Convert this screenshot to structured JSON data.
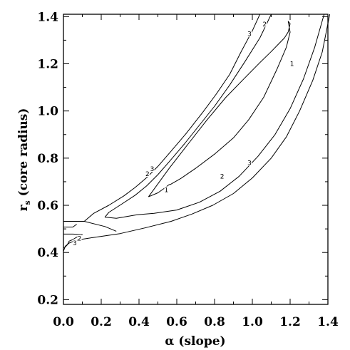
{
  "chart_data": {
    "type": "contour",
    "xlabel": "α (slope)",
    "ylabel": "r",
    "ylabel_subscript": "s",
    "ylabel_suffix": " (core radius)",
    "xlim": [
      0.0,
      1.4
    ],
    "ylim": [
      0.18,
      1.41
    ],
    "x_ticks": [
      0.0,
      0.2,
      0.4,
      0.6,
      0.8,
      1.0,
      1.2,
      1.4
    ],
    "x_tick_labels": [
      "0.0",
      "0.2",
      "0.4",
      "0.6",
      "0.8",
      "1.0",
      "1.2",
      "1.4"
    ],
    "y_ticks": [
      0.2,
      0.4,
      0.6,
      0.8,
      1.0,
      1.2,
      1.4
    ],
    "y_tick_labels": [
      "0.2",
      "0.4",
      "0.6",
      "0.8",
      "1.0",
      "1.2",
      "1.4"
    ],
    "grid": false,
    "contours": [
      {
        "level": "1",
        "points": [
          [
            0.45,
            0.636
          ],
          [
            0.56,
            0.757
          ],
          [
            0.66,
            0.86
          ],
          [
            0.76,
            0.962
          ],
          [
            0.86,
            1.058
          ],
          [
            0.96,
            1.14
          ],
          [
            1.04,
            1.205
          ],
          [
            1.1,
            1.252
          ],
          [
            1.14,
            1.285
          ],
          [
            1.17,
            1.31
          ],
          [
            1.19,
            1.335
          ],
          [
            1.2,
            1.37
          ],
          [
            1.19,
            1.38
          ],
          [
            1.2,
            1.334
          ],
          [
            1.18,
            1.27
          ],
          [
            1.13,
            1.176
          ],
          [
            1.06,
            1.058
          ],
          [
            0.98,
            0.962
          ],
          [
            0.9,
            0.886
          ],
          [
            0.8,
            0.817
          ],
          [
            0.7,
            0.757
          ],
          [
            0.62,
            0.713
          ],
          [
            0.565,
            0.688
          ],
          [
            0.56,
            0.688
          ],
          [
            0.53,
            0.67
          ],
          [
            0.5,
            0.653
          ],
          [
            0.45,
            0.636
          ]
        ]
      },
      {
        "level": "2",
        "points": [
          [
            1.38,
            1.41
          ],
          [
            1.33,
            1.27
          ],
          [
            1.27,
            1.135
          ],
          [
            1.2,
            1.01
          ],
          [
            1.12,
            0.9
          ],
          [
            1.03,
            0.808
          ],
          [
            0.93,
            0.723
          ],
          [
            0.83,
            0.66
          ],
          [
            0.72,
            0.613
          ],
          [
            0.6,
            0.58
          ],
          [
            0.48,
            0.566
          ],
          [
            0.39,
            0.56
          ],
          [
            0.28,
            0.545
          ],
          [
            0.22,
            0.55
          ],
          [
            0.24,
            0.57
          ],
          [
            0.31,
            0.606
          ],
          [
            0.38,
            0.643
          ],
          [
            0.44,
            0.682
          ],
          [
            0.5,
            0.73
          ],
          [
            0.56,
            0.785
          ],
          [
            0.64,
            0.86
          ],
          [
            0.72,
            0.94
          ],
          [
            0.8,
            1.02
          ],
          [
            0.88,
            1.11
          ],
          [
            0.96,
            1.208
          ],
          [
            1.04,
            1.31
          ],
          [
            1.1,
            1.41
          ]
        ]
      },
      {
        "level": "2",
        "points": [
          [
            0.0,
            0.478
          ],
          [
            0.05,
            0.478
          ],
          [
            0.1,
            0.476
          ],
          [
            0.07,
            0.465
          ],
          [
            0.05,
            0.455
          ],
          [
            0.03,
            0.448
          ],
          [
            0.02,
            0.432
          ],
          [
            0.01,
            0.424
          ],
          [
            0.0,
            0.42
          ]
        ]
      },
      {
        "level": "3",
        "points": [
          [
            1.41,
            1.41
          ],
          [
            1.37,
            1.25
          ],
          [
            1.32,
            1.13
          ],
          [
            1.25,
            1.0
          ],
          [
            1.18,
            0.89
          ],
          [
            1.1,
            0.8
          ],
          [
            1.0,
            0.716
          ],
          [
            0.9,
            0.65
          ],
          [
            0.79,
            0.6
          ],
          [
            0.68,
            0.563
          ],
          [
            0.57,
            0.532
          ],
          [
            0.43,
            0.504
          ],
          [
            0.3,
            0.48
          ],
          [
            0.17,
            0.465
          ],
          [
            0.09,
            0.455
          ],
          [
            0.06,
            0.45
          ],
          [
            0.03,
            0.44
          ],
          [
            0.01,
            0.427
          ],
          [
            0.0,
            0.405
          ]
        ]
      },
      {
        "level": "3",
        "points": [
          [
            0.0,
            0.532
          ],
          [
            0.11,
            0.532
          ],
          [
            0.16,
            0.566
          ],
          [
            0.24,
            0.6
          ],
          [
            0.32,
            0.64
          ],
          [
            0.38,
            0.676
          ],
          [
            0.44,
            0.717
          ],
          [
            0.5,
            0.765
          ],
          [
            0.57,
            0.83
          ],
          [
            0.65,
            0.905
          ],
          [
            0.74,
            0.997
          ],
          [
            0.81,
            1.073
          ],
          [
            0.88,
            1.155
          ],
          [
            0.94,
            1.25
          ],
          [
            1.0,
            1.34
          ],
          [
            1.04,
            1.41
          ]
        ]
      },
      {
        "level": "3",
        "points": [
          [
            0.0,
            0.508
          ],
          [
            0.05,
            0.508
          ],
          [
            0.07,
            0.52
          ]
        ]
      },
      {
        "level": "3",
        "points": [
          [
            0.11,
            0.532
          ],
          [
            0.22,
            0.51
          ],
          [
            0.28,
            0.49
          ]
        ]
      }
    ],
    "contour_labels": [
      {
        "text": "3",
        "x": 0.985,
        "y": 1.327
      },
      {
        "text": "2",
        "x": 1.065,
        "y": 1.367
      },
      {
        "text": "1",
        "x": 1.21,
        "y": 1.2
      },
      {
        "text": "3",
        "x": 0.47,
        "y": 0.754
      },
      {
        "text": "2",
        "x": 0.445,
        "y": 0.733
      },
      {
        "text": "1",
        "x": 0.545,
        "y": 0.665
      },
      {
        "text": "2",
        "x": 0.84,
        "y": 0.722
      },
      {
        "text": "3",
        "x": 0.985,
        "y": 0.78
      },
      {
        "text": "2",
        "x": 0.085,
        "y": 0.46
      },
      {
        "text": "3",
        "x": 0.06,
        "y": 0.44
      }
    ]
  }
}
